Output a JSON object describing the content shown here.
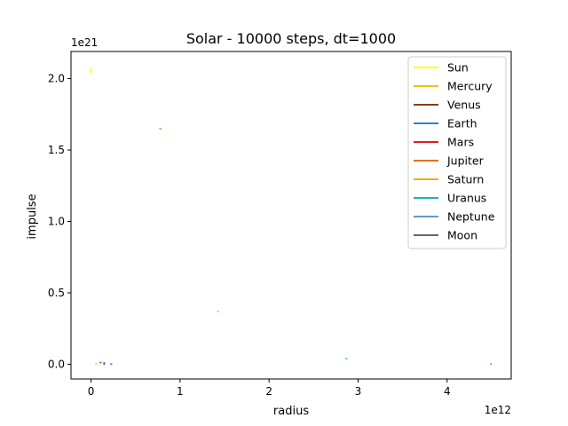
{
  "chart_data": {
    "type": "line",
    "title": "Solar - 10000 steps, dt=1000",
    "xlabel": "radius",
    "ylabel": "impulse",
    "x_offset_text": "1e12",
    "y_offset_text": "1e21",
    "xlim": [
      -225000000000.0,
      4720000000000.0
    ],
    "ylim": [
      -1.03e+20,
      2.19e+21
    ],
    "x_ticks": [
      {
        "value": 0,
        "label": "0"
      },
      {
        "value": 1000000000000.0,
        "label": "1"
      },
      {
        "value": 2000000000000.0,
        "label": "2"
      },
      {
        "value": 3000000000000.0,
        "label": "3"
      },
      {
        "value": 4000000000000.0,
        "label": "4"
      }
    ],
    "y_ticks": [
      {
        "value": 0,
        "label": "0.0"
      },
      {
        "value": 5e+20,
        "label": "0.5"
      },
      {
        "value": 1e+21,
        "label": "1.0"
      },
      {
        "value": 1.5e+21,
        "label": "1.5"
      },
      {
        "value": 2e+21,
        "label": "2.0"
      }
    ],
    "grid": false,
    "legend_position": "top-right",
    "series": [
      {
        "name": "Sun",
        "color": "#ffff00",
        "x": [
          -1000000000.0,
          0.0,
          1000000000.0,
          0.0,
          -1000000000.0
        ],
        "y": [
          2.04e+21,
          2.06e+21,
          2.08e+21,
          2.05e+21,
          2.07e+21
        ]
      },
      {
        "name": "Mercury",
        "color": "#e6c619",
        "x": [
          55000000000.0,
          65000000000.0,
          60000000000.0
        ],
        "y": [
          4e+18,
          6e+18,
          5e+18
        ]
      },
      {
        "name": "Venus",
        "color": "#8b3a0f",
        "x": [
          105000000000.0,
          110000000000.0
        ],
        "y": [
          1.2e+19,
          1.2e+19
        ]
      },
      {
        "name": "Earth",
        "color": "#3d7ec4",
        "x": [
          145000000000.0,
          150000000000.0
        ],
        "y": [
          1e+19,
          1e+19
        ]
      },
      {
        "name": "Mars",
        "color": "#e02020",
        "x": [
          225000000000.0,
          230000000000.0
        ],
        "y": [
          2e+18,
          2e+18
        ]
      },
      {
        "name": "Jupiter",
        "color": "#e8701a",
        "x": [
          775000000000.0,
          780000000000.0
        ],
        "y": [
          1.65e+21,
          1.65e+21
        ]
      },
      {
        "name": "Saturn",
        "color": "#e8b020",
        "x": [
          1425000000000.0,
          1430000000000.0
        ],
        "y": [
          3.7e+20,
          3.7e+20
        ]
      },
      {
        "name": "Uranus",
        "color": "#20b2aa",
        "x": [
          2865000000000.0,
          2870000000000.0
        ],
        "y": [
          4e+19,
          4e+19
        ]
      },
      {
        "name": "Neptune",
        "color": "#5b9bd5",
        "x": [
          4490000000000.0,
          4495000000000.0
        ],
        "y": [
          1e+18,
          1e+18
        ]
      },
      {
        "name": "Moon",
        "color": "#666666",
        "x": [
          146000000000.0,
          150000000000.0,
          146000000000.0
        ],
        "y": [
          0,
          1.5e+18,
          3e+18
        ]
      }
    ]
  }
}
